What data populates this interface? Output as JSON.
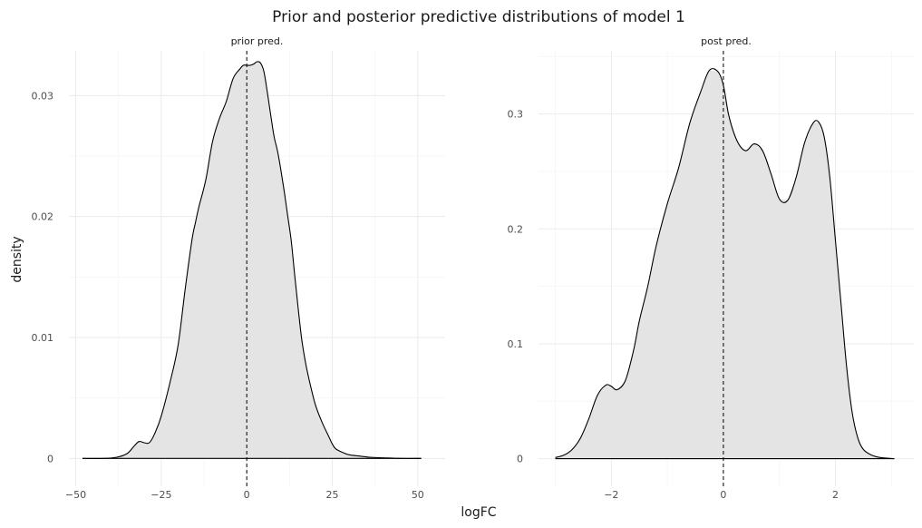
{
  "chart_data": {
    "type": "area",
    "title": "Prior and posterior predictive distributions of model 1",
    "xlabel": "logFC",
    "ylabel": "density",
    "fill_color": "#e4e4e4",
    "line_color": "#000000",
    "grid": true,
    "panels": [
      {
        "label": "prior pred.",
        "xlim": [
          -52,
          58
        ],
        "ylim": [
          -0.0023,
          0.0337
        ],
        "xticks": [
          -50,
          -25,
          0,
          25,
          50
        ],
        "xtick_labels": [
          "−50",
          "−25",
          "0",
          "25",
          "50"
        ],
        "yticks": [
          0,
          0.01,
          0.02,
          0.03
        ],
        "ytick_labels": [
          "0",
          "0.01",
          "0.02",
          "0.03"
        ],
        "vline": 0,
        "x": [
          -48,
          -42,
          -38,
          -35,
          -33,
          -31.5,
          -30,
          -28.5,
          -27,
          -25,
          -22,
          -20,
          -18,
          -16,
          -15,
          -14,
          -12,
          -10,
          -8,
          -6,
          -4,
          -2,
          -1,
          0,
          1,
          2,
          3,
          4,
          5,
          6,
          7,
          8,
          9,
          10,
          11,
          12,
          13,
          14,
          15,
          16,
          17,
          18,
          20,
          22,
          24,
          25,
          26,
          28,
          30,
          33,
          36,
          40,
          45,
          51
        ],
        "y": [
          0,
          0,
          0.0001,
          0.0004,
          0.001,
          0.0014,
          0.0013,
          0.0013,
          0.002,
          0.0035,
          0.0068,
          0.0095,
          0.014,
          0.0181,
          0.0195,
          0.0208,
          0.023,
          0.0262,
          0.0281,
          0.0295,
          0.0314,
          0.0322,
          0.0325,
          0.0325,
          0.0325,
          0.0326,
          0.0328,
          0.0327,
          0.032,
          0.0303,
          0.0284,
          0.0266,
          0.0254,
          0.0238,
          0.022,
          0.02,
          0.018,
          0.0152,
          0.0125,
          0.01,
          0.0082,
          0.0068,
          0.0045,
          0.003,
          0.0018,
          0.0012,
          0.0008,
          0.0005,
          0.0003,
          0.0002,
          0.0001,
          5e-05,
          0,
          0
        ]
      },
      {
        "label": "post pred.",
        "xlim": [
          -3.3,
          3.4
        ],
        "ylim": [
          -0.024,
          0.355
        ],
        "xticks": [
          -2,
          0,
          2
        ],
        "xtick_labels": [
          "−2",
          "0",
          "2"
        ],
        "yticks": [
          0,
          0.1,
          0.2,
          0.3
        ],
        "ytick_labels": [
          "0",
          "0.1",
          "0.2",
          "0.3"
        ],
        "vline": 0,
        "x": [
          -3.0,
          -2.85,
          -2.7,
          -2.55,
          -2.4,
          -2.25,
          -2.1,
          -2.0,
          -1.9,
          -1.75,
          -1.6,
          -1.5,
          -1.35,
          -1.2,
          -1.0,
          -0.8,
          -0.6,
          -0.4,
          -0.25,
          -0.1,
          0.0,
          0.1,
          0.25,
          0.4,
          0.55,
          0.7,
          0.85,
          1.0,
          1.15,
          1.3,
          1.45,
          1.6,
          1.7,
          1.8,
          1.9,
          2.0,
          2.1,
          2.2,
          2.3,
          2.4,
          2.5,
          2.65,
          2.8,
          3.05
        ],
        "y": [
          0.001,
          0.003,
          0.008,
          0.018,
          0.035,
          0.055,
          0.064,
          0.063,
          0.06,
          0.068,
          0.095,
          0.12,
          0.15,
          0.185,
          0.222,
          0.253,
          0.292,
          0.32,
          0.338,
          0.337,
          0.325,
          0.298,
          0.276,
          0.268,
          0.274,
          0.268,
          0.248,
          0.226,
          0.225,
          0.245,
          0.275,
          0.292,
          0.293,
          0.28,
          0.245,
          0.19,
          0.135,
          0.08,
          0.04,
          0.018,
          0.008,
          0.003,
          0.001,
          0
        ]
      }
    ]
  }
}
